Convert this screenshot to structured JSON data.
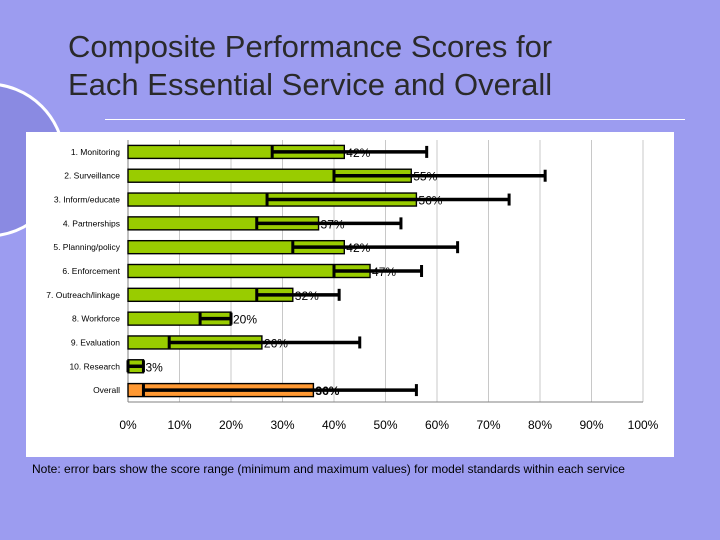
{
  "slide": {
    "title_line1": "Composite Performance Scores for",
    "title_line2": "Each Essential Service and Overall",
    "note": "Note: error bars show the score range (minimum and maximum values) for model standards within each service"
  },
  "colors": {
    "background": "#9c9cf0",
    "bar_green": "#99cc00",
    "bar_orange": "#ff9933",
    "error_bar": "#000000"
  },
  "chart_data": {
    "type": "bar",
    "orientation": "horizontal",
    "categories": [
      "1. Monitoring",
      "2. Surveillance",
      "3. Inform/educate",
      "4. Partnerships",
      "5. Planning/policy",
      "6. Enforcement",
      "7. Outreach/linkage",
      "8. Workforce",
      "9. Evaluation",
      "10. Research",
      "Overall"
    ],
    "values": [
      42,
      55,
      56,
      37,
      42,
      47,
      32,
      20,
      26,
      3,
      36
    ],
    "data_labels": [
      "42%",
      "55%",
      "56%",
      "37%",
      "42%",
      "47%",
      "32%",
      "20%",
      "26%",
      "3%",
      "36%"
    ],
    "range_min": [
      28,
      40,
      27,
      25,
      32,
      40,
      25,
      14,
      8,
      0,
      3
    ],
    "range_max": [
      58,
      81,
      74,
      53,
      64,
      57,
      41,
      20,
      45,
      3,
      56
    ],
    "xlim": [
      0,
      100
    ],
    "xticks": [
      "0%",
      "10%",
      "20%",
      "30%",
      "40%",
      "50%",
      "60%",
      "70%",
      "80%",
      "90%",
      "100%"
    ],
    "grid": "vertical",
    "highlight_category": "Overall"
  }
}
